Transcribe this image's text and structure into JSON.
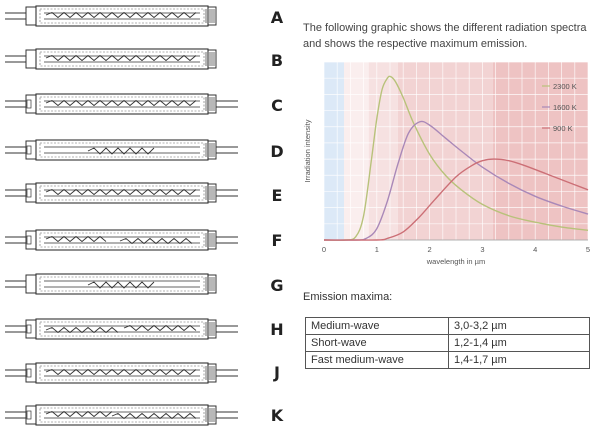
{
  "heater_letters": [
    "A",
    "B",
    "C",
    "D",
    "E",
    "F",
    "G",
    "H",
    "J",
    "K"
  ],
  "intro": {
    "line1": "The following graphic shows the different radiation spectra",
    "line2": "and shows the respective maximum emission."
  },
  "chart_data": {
    "type": "line",
    "xlabel": "wavelength in µm",
    "ylabel": "Irradiation intensity",
    "xlim": [
      0,
      5
    ],
    "x_ticks": [
      "0",
      "1",
      "2",
      "3",
      "4",
      "5"
    ],
    "grid": true,
    "legend_placement": "top-right",
    "band_colors": {
      "near_infrared": "#dce9f7",
      "short_wave": "#f6e1e1",
      "fast_medium_wave": "#f2d3d3",
      "medium_wave": "#eec3c3"
    },
    "series": [
      {
        "name": "2300 K",
        "color": "#b8c27a",
        "peak_x": 1.26,
        "x": [
          0,
          0.4,
          0.6,
          0.75,
          0.9,
          1.0,
          1.1,
          1.2,
          1.26,
          1.35,
          1.5,
          1.7,
          2.0,
          2.3,
          2.6,
          3.0,
          3.5,
          4.0,
          4.5,
          5.0
        ],
        "y": [
          0,
          0,
          0.02,
          0.15,
          0.5,
          0.75,
          0.93,
          1.0,
          1.01,
          0.98,
          0.88,
          0.72,
          0.53,
          0.4,
          0.31,
          0.22,
          0.15,
          0.11,
          0.08,
          0.06
        ]
      },
      {
        "name": "1600 K",
        "color": "#a988b8",
        "peak_x": 1.81,
        "x": [
          0,
          0.6,
          0.8,
          1.0,
          1.2,
          1.4,
          1.6,
          1.81,
          2.0,
          2.3,
          2.6,
          3.0,
          3.5,
          4.0,
          4.5,
          5.0
        ],
        "y": [
          0,
          0,
          0.01,
          0.07,
          0.24,
          0.47,
          0.66,
          0.73,
          0.71,
          0.63,
          0.55,
          0.45,
          0.35,
          0.27,
          0.21,
          0.16
        ]
      },
      {
        "name": "900 K",
        "color": "#cc6f76",
        "peak_x": 3.22,
        "x": [
          0,
          1.0,
          1.2,
          1.5,
          1.8,
          2.1,
          2.5,
          2.8,
          3.0,
          3.22,
          3.5,
          3.8,
          4.2,
          4.6,
          5.0
        ],
        "y": [
          0,
          0,
          0.01,
          0.05,
          0.14,
          0.25,
          0.39,
          0.46,
          0.49,
          0.5,
          0.49,
          0.46,
          0.41,
          0.36,
          0.31
        ]
      }
    ]
  },
  "maxima": {
    "heading": "Emission maxima:",
    "rows": [
      {
        "type": "Medium-wave",
        "range": "3,0-3,2 µm"
      },
      {
        "type": "Short-wave",
        "range": "1,2-1,4 µm"
      },
      {
        "type": "Fast medium-wave",
        "range": "1,4-1,7 µm"
      }
    ]
  }
}
